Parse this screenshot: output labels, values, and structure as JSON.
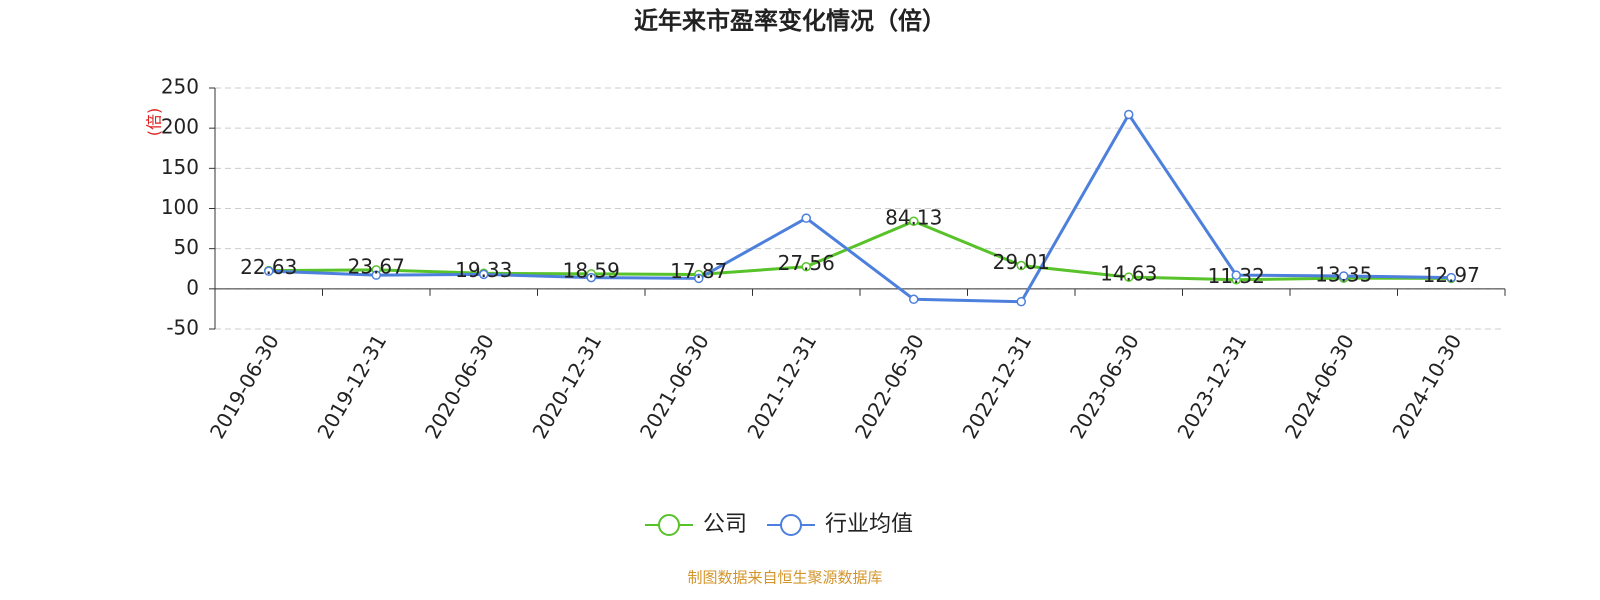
{
  "chart_data": {
    "type": "line",
    "title": "近年来市盈率变化情况（倍）",
    "y_label": "(倍)",
    "source": "制图数据来自恒生聚源数据库",
    "categories": [
      "2019-06-30",
      "2019-12-31",
      "2020-06-30",
      "2020-12-31",
      "2021-06-30",
      "2021-12-31",
      "2022-06-30",
      "2022-12-31",
      "2023-06-30",
      "2023-12-31",
      "2024-06-30",
      "2024-10-30"
    ],
    "series": [
      {
        "name": "公司",
        "color": "#58c22a",
        "values": [
          22.63,
          23.67,
          19.33,
          18.59,
          17.87,
          27.56,
          84.13,
          29.01,
          14.63,
          11.32,
          13.35,
          12.97
        ]
      },
      {
        "name": "行业均值",
        "color": "#4d7fdc",
        "values": [
          22,
          17,
          18,
          14,
          13,
          88,
          -13,
          -16,
          217,
          17,
          16,
          14
        ]
      }
    ],
    "ylim": [
      -50,
      250
    ],
    "yticks": [
      -50,
      0,
      50,
      100,
      150,
      200,
      250
    ],
    "grid": true
  }
}
